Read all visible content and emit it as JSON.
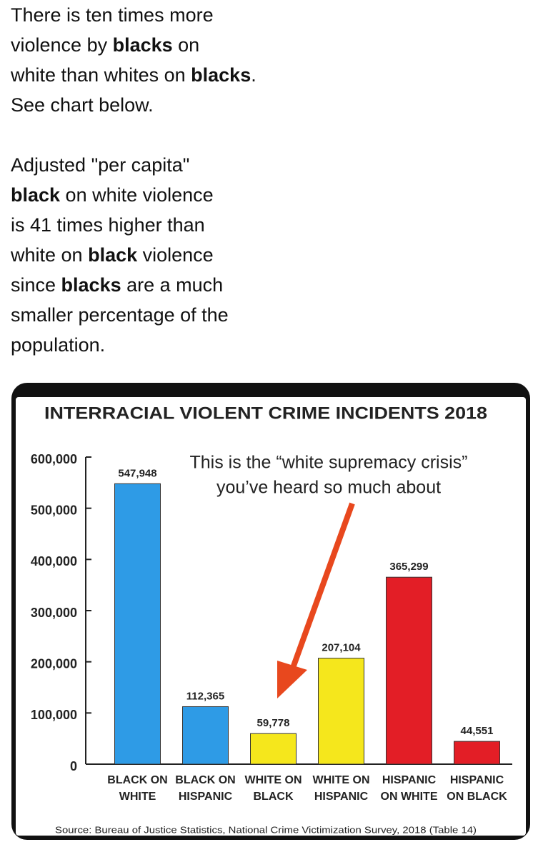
{
  "post": {
    "paragraphs": [
      [
        [
          {
            "text": "There is ten times more"
          }
        ],
        [
          {
            "text": "violence by "
          },
          {
            "text": "blacks",
            "bold": true
          },
          {
            "text": " on"
          }
        ],
        [
          {
            "text": "white than whites on "
          },
          {
            "text": "blacks",
            "bold": true
          },
          {
            "text": "."
          }
        ],
        [
          {
            "text": "See chart below."
          }
        ]
      ],
      [
        [
          {
            "text": "Adjusted \"per capita\""
          }
        ],
        [
          {
            "text": "black",
            "bold": true
          },
          {
            "text": " on white violence"
          }
        ],
        [
          {
            "text": "is 41 times higher than"
          }
        ],
        [
          {
            "text": "white on "
          },
          {
            "text": "black",
            "bold": true
          },
          {
            "text": " violence"
          }
        ],
        [
          {
            "text": "since "
          },
          {
            "text": "blacks",
            "bold": true
          },
          {
            "text": " are a much"
          }
        ],
        [
          {
            "text": "smaller percentage of the"
          }
        ],
        [
          {
            "text": "population."
          }
        ]
      ]
    ]
  },
  "chart_data": {
    "type": "bar",
    "title": "INTERRACIAL VIOLENT CRIME INCIDENTS 2018",
    "annotation": [
      "This is the “white supremacy crisis”",
      "you’ve heard so much about"
    ],
    "categories": [
      [
        "BLACK ON",
        "WHITE"
      ],
      [
        "BLACK ON",
        "HISPANIC"
      ],
      [
        "WHITE ON",
        "BLACK"
      ],
      [
        "WHITE ON",
        "HISPANIC"
      ],
      [
        "HISPANIC",
        "ON WHITE"
      ],
      [
        "HISPANIC",
        "ON BLACK"
      ]
    ],
    "values": [
      547948,
      112365,
      59778,
      207104,
      365299,
      44551
    ],
    "value_labels": [
      "547,948",
      "112,365",
      "59,778",
      "207,104",
      "365,299",
      "44,551"
    ],
    "colors": [
      "#2e9be6",
      "#2e9be6",
      "#f5e71c",
      "#f5e71c",
      "#e31e26",
      "#e31e26"
    ],
    "ylim": [
      0,
      600000
    ],
    "yticks": [
      0,
      {
        "value": 100000,
        "label": "100,000"
      },
      {
        "value": 200000,
        "label": "200,000"
      },
      {
        "value": 300000,
        "label": "300,000"
      },
      {
        "value": 400000,
        "label": "400,000"
      },
      {
        "value": 500000,
        "label": "500,000"
      },
      {
        "value": 600000,
        "label": "600,000"
      }
    ],
    "source": "Source: Bureau of Justice Statistics, National Crime Victimization Survey, 2018 (Table 14)"
  }
}
